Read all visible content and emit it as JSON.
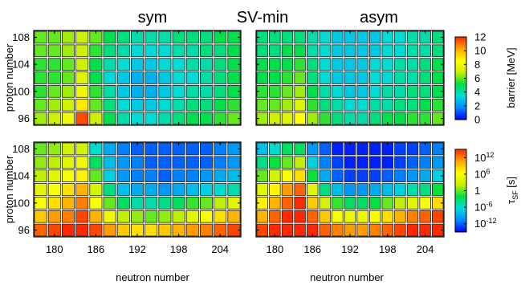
{
  "figure": {
    "labels": {
      "left": "sym",
      "center": "SV-min",
      "right": "asym"
    },
    "ylabel": "proton number",
    "xlabel": "neutron number"
  },
  "chart_data": [
    {
      "type": "heatmap",
      "panel": "top-left",
      "column_header": "sym",
      "x": [
        178,
        180,
        182,
        184,
        186,
        188,
        190,
        192,
        194,
        196,
        198,
        200,
        202,
        204,
        206
      ],
      "y": [
        108,
        106,
        104,
        102,
        100,
        98,
        96
      ],
      "x_ticks": [
        "180",
        "186",
        "192",
        "198",
        "204"
      ],
      "y_ticks": [
        "108",
        "104",
        "100",
        "96"
      ],
      "quantity": "barrier",
      "unit": "MeV",
      "values": [
        [
          6.0,
          6.0,
          6.5,
          7.0,
          6.0,
          5.0,
          4.5,
          4.0,
          4.0,
          4.0,
          4.5,
          4.5,
          4.5,
          5.0,
          5.0
        ],
        [
          6.0,
          6.0,
          6.5,
          7.0,
          5.5,
          4.5,
          4.0,
          3.5,
          3.5,
          3.5,
          4.0,
          4.0,
          4.5,
          4.5,
          5.0
        ],
        [
          5.5,
          5.5,
          6.0,
          7.0,
          5.0,
          4.0,
          3.5,
          3.0,
          3.0,
          3.5,
          3.5,
          4.0,
          4.0,
          4.5,
          5.0
        ],
        [
          5.5,
          5.5,
          6.0,
          7.5,
          5.0,
          3.5,
          3.0,
          2.5,
          2.5,
          3.0,
          3.5,
          3.5,
          4.0,
          4.5,
          5.0
        ],
        [
          5.5,
          6.0,
          6.5,
          8.0,
          5.5,
          4.0,
          3.0,
          2.5,
          2.5,
          3.0,
          3.5,
          4.0,
          4.0,
          4.5,
          5.0
        ],
        [
          6.0,
          6.5,
          7.0,
          9.0,
          6.0,
          4.5,
          3.5,
          3.0,
          3.0,
          3.5,
          4.0,
          4.5,
          4.5,
          5.0,
          5.5
        ],
        [
          6.5,
          7.0,
          8.0,
          11.5,
          7.0,
          5.0,
          4.0,
          3.5,
          3.5,
          4.0,
          4.5,
          5.0,
          5.0,
          5.5,
          6.0
        ]
      ]
    },
    {
      "type": "heatmap",
      "panel": "top-right",
      "column_header": "asym",
      "x": [
        178,
        180,
        182,
        184,
        186,
        188,
        190,
        192,
        194,
        196,
        198,
        200,
        202,
        204,
        206
      ],
      "y": [
        108,
        106,
        104,
        102,
        100,
        98,
        96
      ],
      "x_ticks": [
        "180",
        "186",
        "192",
        "198",
        "204"
      ],
      "y_ticks": [
        "108",
        "104",
        "100",
        "96"
      ],
      "quantity": "barrier",
      "unit": "MeV",
      "values": [
        [
          4.5,
          4.5,
          4.5,
          4.5,
          4.0,
          3.5,
          3.0,
          3.0,
          3.0,
          3.0,
          3.5,
          3.5,
          4.0,
          4.0,
          4.5
        ],
        [
          4.5,
          4.5,
          5.0,
          5.0,
          4.0,
          3.5,
          3.0,
          3.0,
          3.0,
          3.0,
          3.5,
          3.5,
          4.0,
          4.0,
          4.5
        ],
        [
          5.0,
          5.0,
          5.0,
          5.5,
          4.5,
          3.5,
          3.0,
          3.0,
          3.0,
          3.5,
          3.5,
          4.0,
          4.0,
          4.5,
          5.0
        ],
        [
          5.0,
          5.0,
          5.5,
          6.0,
          4.5,
          3.5,
          3.0,
          3.0,
          3.0,
          3.5,
          3.5,
          4.0,
          4.0,
          4.5,
          5.0
        ],
        [
          5.5,
          5.5,
          6.0,
          6.5,
          5.0,
          4.0,
          3.5,
          3.0,
          3.0,
          3.5,
          4.0,
          4.0,
          4.5,
          4.5,
          5.0
        ],
        [
          6.0,
          6.0,
          6.5,
          7.5,
          5.5,
          4.5,
          4.0,
          3.5,
          3.5,
          4.0,
          4.0,
          4.5,
          4.5,
          5.0,
          5.5
        ],
        [
          6.5,
          7.0,
          7.5,
          8.5,
          6.5,
          5.5,
          4.5,
          4.0,
          4.0,
          4.5,
          5.0,
          5.0,
          5.5,
          5.5,
          6.0
        ]
      ]
    },
    {
      "type": "heatmap",
      "panel": "bottom-left",
      "x": [
        178,
        180,
        182,
        184,
        186,
        188,
        190,
        192,
        194,
        196,
        198,
        200,
        202,
        204,
        206
      ],
      "y": [
        108,
        106,
        104,
        102,
        100,
        98,
        96
      ],
      "x_ticks": [
        "180",
        "186",
        "192",
        "198",
        "204"
      ],
      "y_ticks": [
        "108",
        "104",
        "100",
        "96"
      ],
      "quantity": "tau_SF",
      "unit": "s",
      "log10_values": [
        [
          0,
          1,
          3,
          3,
          -6,
          -9,
          -11,
          -12,
          -12,
          -12,
          -12,
          -12,
          -12,
          -11,
          -10
        ],
        [
          1,
          2,
          4,
          5,
          -3,
          -8,
          -10,
          -11,
          -12,
          -12,
          -12,
          -12,
          -12,
          -11,
          -10
        ],
        [
          2,
          4,
          6,
          7,
          0,
          -7,
          -10,
          -11,
          -11,
          -12,
          -11,
          -11,
          -10,
          -9,
          -8
        ],
        [
          4,
          6,
          8,
          10,
          3,
          -4,
          -8,
          -9,
          -9,
          -10,
          -9,
          -8,
          -7,
          -6,
          -5
        ],
        [
          6,
          8,
          10,
          12,
          6,
          0,
          -3,
          -5,
          -5,
          -4,
          -3,
          -1,
          0,
          2,
          4
        ],
        [
          9,
          11,
          12,
          14,
          10,
          5,
          2,
          1,
          0,
          1,
          2,
          4,
          6,
          8,
          10
        ],
        [
          13,
          14,
          15,
          16,
          14,
          11,
          9,
          8,
          8,
          9,
          10,
          11,
          12,
          13,
          14
        ]
      ]
    },
    {
      "type": "heatmap",
      "panel": "bottom-right",
      "x": [
        178,
        180,
        182,
        184,
        186,
        188,
        190,
        192,
        194,
        196,
        198,
        200,
        202,
        204,
        206
      ],
      "y": [
        108,
        106,
        104,
        102,
        100,
        98,
        96
      ],
      "x_ticks": [
        "180",
        "186",
        "192",
        "198",
        "204"
      ],
      "y_ticks": [
        "108",
        "104",
        "100",
        "96"
      ],
      "quantity": "tau_SF",
      "unit": "s",
      "log10_values": [
        [
          -8,
          -6,
          -3,
          -3,
          -10,
          -12,
          -14,
          -14,
          -14,
          -14,
          -14,
          -13,
          -13,
          -12,
          -11
        ],
        [
          -4,
          -2,
          0,
          2,
          -7,
          -11,
          -13,
          -14,
          -14,
          -14,
          -14,
          -13,
          -12,
          -11,
          -10
        ],
        [
          0,
          3,
          6,
          8,
          -2,
          -9,
          -12,
          -13,
          -13,
          -13,
          -12,
          -11,
          -10,
          -9,
          -7
        ],
        [
          4,
          7,
          11,
          13,
          4,
          -4,
          -8,
          -10,
          -10,
          -9,
          -8,
          -7,
          -5,
          -4,
          -2
        ],
        [
          7,
          10,
          13,
          15,
          9,
          3,
          -1,
          -3,
          -3,
          -2,
          0,
          2,
          4,
          6,
          8
        ],
        [
          10,
          13,
          15,
          16,
          13,
          9,
          6,
          5,
          5,
          6,
          8,
          10,
          12,
          13,
          14
        ],
        [
          14,
          15,
          16,
          16,
          15,
          13,
          12,
          11,
          11,
          12,
          13,
          14,
          15,
          15,
          15
        ]
      ]
    }
  ],
  "colorbars": [
    {
      "id": "barrier",
      "label": "barrier  [MeV]",
      "range": [
        0,
        12
      ],
      "ticks": [
        "12",
        "10",
        "8",
        "6",
        "4",
        "2",
        "0"
      ],
      "tick_values": [
        12,
        10,
        8,
        6,
        4,
        2,
        0
      ]
    },
    {
      "id": "tau",
      "label_base": "τ",
      "label_sub": "SF",
      "label_unit": "[s]",
      "range_log10": [
        -15,
        15
      ],
      "ticks": [
        {
          "base": "10",
          "exp": "12",
          "value": 12
        },
        {
          "base": "10",
          "exp": "6",
          "value": 6
        },
        {
          "base": "1",
          "exp": "",
          "value": 0
        },
        {
          "base": "10",
          "exp": "-6",
          "value": -6
        },
        {
          "base": "10",
          "exp": "-12",
          "value": -12
        }
      ]
    }
  ],
  "colors": {
    "palette_stops": [
      "#0000ff",
      "#008aff",
      "#00dcdc",
      "#00e040",
      "#c8f000",
      "#ffff00",
      "#ffa500",
      "#ff2800"
    ],
    "cell_border": "#222222",
    "frame": "#000000"
  }
}
